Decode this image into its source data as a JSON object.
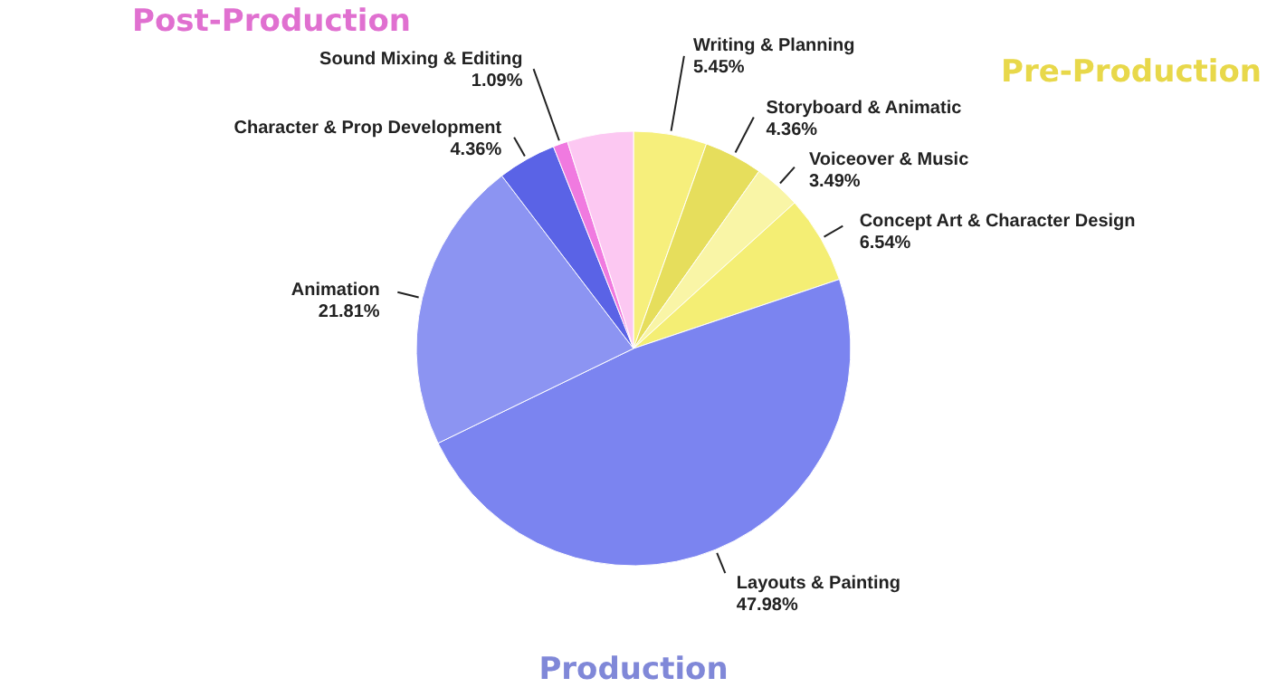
{
  "chart_data": {
    "type": "pie",
    "categories": [
      "Writing & Planning",
      "Storyboard & Animatic",
      "Voiceover & Music",
      "Concept Art & Character Design",
      "Layouts & Painting",
      "Animation",
      "Character & Prop Development",
      "Sound Mixing & Editing",
      null
    ],
    "values": [
      5.45,
      4.36,
      3.49,
      6.54,
      47.98,
      21.81,
      4.36,
      1.09,
      4.92
    ],
    "value_labels": [
      "5.45%",
      "4.36%",
      "3.49%",
      "6.54%",
      "47.98%",
      "21.81%",
      "4.36%",
      "1.09%",
      null
    ],
    "colors": [
      "#f6ef7c",
      "#e6de5c",
      "#f9f5a6",
      "#f4ee74",
      "#7b84f0",
      "#8c94f2",
      "#5a63e6",
      "#f07ae0",
      "#fcc8f2"
    ],
    "annotations": [
      "Pre-Production",
      "Production",
      "Post-Production"
    ]
  }
}
